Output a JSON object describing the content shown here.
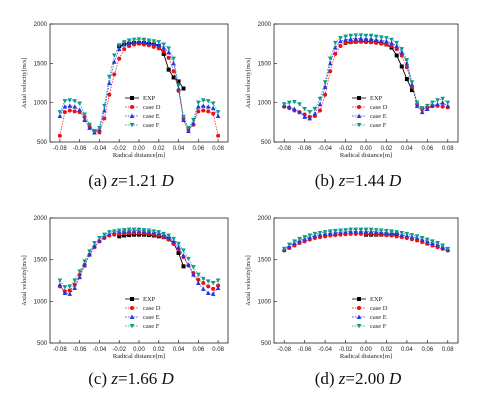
{
  "colors": {
    "EXP": "#000000",
    "case D": "#ee1111",
    "case E": "#2233ee",
    "case F": "#119988"
  },
  "markers": {
    "EXP": "square",
    "case D": "circle",
    "case E": "triangle-up",
    "case F": "triangle-down"
  },
  "chart_data": [
    {
      "type": "line",
      "caption": {
        "prefix": "(a) ",
        "var": "z",
        "value": "=1.21 ",
        "unit": "D"
      },
      "xlabel": "Radical distance[m]",
      "ylabel": "Axial velocity[m/s]",
      "xlim": [
        -0.09,
        0.09
      ],
      "ylim": [
        500,
        2000
      ],
      "xticks": [
        "-0.08",
        "-0.06",
        "-0.04",
        "-0.02",
        "0.00",
        "0.02",
        "0.04",
        "0.06",
        "0.08"
      ],
      "yticks": [
        "500",
        "1000",
        "1500",
        "2000"
      ],
      "legend": "lower-center",
      "x": [
        -0.08,
        -0.075,
        -0.07,
        -0.065,
        -0.06,
        -0.055,
        -0.05,
        -0.045,
        -0.04,
        -0.035,
        -0.03,
        -0.025,
        -0.02,
        -0.015,
        -0.01,
        -0.005,
        0,
        0.005,
        0.01,
        0.015,
        0.02,
        0.025,
        0.03,
        0.035,
        0.04,
        0.045,
        0.05,
        0.055,
        0.06,
        0.065,
        0.07,
        0.075,
        0.08
      ],
      "series": [
        {
          "name": "EXP",
          "x": [
            -0.02,
            -0.015,
            -0.01,
            -0.005,
            0,
            0.005,
            0.01,
            0.015,
            0.02,
            0.025,
            0.03,
            0.035,
            0.04,
            0.045
          ],
          "values": [
            1720,
            1740,
            1750,
            1760,
            1760,
            1760,
            1750,
            1740,
            1720,
            1620,
            1420,
            1320,
            1270,
            1180
          ]
        },
        {
          "name": "case D",
          "values": [
            580,
            880,
            900,
            890,
            880,
            820,
            700,
            640,
            620,
            800,
            1100,
            1360,
            1560,
            1680,
            1720,
            1740,
            1750,
            1740,
            1730,
            1710,
            1690,
            1650,
            1570,
            1400,
            1150,
            800,
            660,
            720,
            890,
            900,
            890,
            860,
            580
          ]
        },
        {
          "name": "case E",
          "values": [
            830,
            950,
            960,
            950,
            910,
            780,
            680,
            620,
            660,
            900,
            1250,
            1520,
            1680,
            1740,
            1760,
            1770,
            1775,
            1770,
            1760,
            1750,
            1730,
            1700,
            1640,
            1500,
            1180,
            780,
            640,
            740,
            950,
            960,
            950,
            930,
            830
          ]
        },
        {
          "name": "case F",
          "values": [
            880,
            1020,
            1030,
            1020,
            990,
            850,
            720,
            640,
            680,
            960,
            1330,
            1600,
            1730,
            1770,
            1790,
            1800,
            1805,
            1800,
            1790,
            1780,
            1770,
            1740,
            1690,
            1560,
            1220,
            820,
            680,
            780,
            1000,
            1030,
            1020,
            990,
            880
          ]
        }
      ]
    },
    {
      "type": "line",
      "caption": {
        "prefix": "(b) ",
        "var": "z",
        "value": "=1.44 ",
        "unit": "D"
      },
      "xlabel": "Radical distance[m]",
      "ylabel": "Axial velocity[m/s]",
      "xlim": [
        -0.09,
        0.09
      ],
      "ylim": [
        500,
        2000
      ],
      "xticks": [
        "-0.08",
        "-0.06",
        "-0.04",
        "-0.02",
        "0.00",
        "0.02",
        "0.04",
        "0.06",
        "0.08"
      ],
      "yticks": [
        "500",
        "1000",
        "1500",
        "2000"
      ],
      "legend": "lower-center",
      "x": [
        -0.08,
        -0.075,
        -0.07,
        -0.065,
        -0.06,
        -0.055,
        -0.05,
        -0.045,
        -0.04,
        -0.035,
        -0.03,
        -0.025,
        -0.02,
        -0.015,
        -0.01,
        -0.005,
        0,
        0.005,
        0.01,
        0.015,
        0.02,
        0.025,
        0.03,
        0.035,
        0.04,
        0.045,
        0.05,
        0.055,
        0.06,
        0.065,
        0.07,
        0.075,
        0.08
      ],
      "series": [
        {
          "name": "EXP",
          "x": [
            -0.02,
            -0.015,
            -0.01,
            -0.005,
            0,
            0.005,
            0.01,
            0.015,
            0.02,
            0.025,
            0.03,
            0.035,
            0.04,
            0.045
          ],
          "values": [
            1760,
            1770,
            1775,
            1780,
            1780,
            1775,
            1770,
            1760,
            1740,
            1700,
            1600,
            1460,
            1300,
            1160
          ]
        },
        {
          "name": "case D",
          "values": [
            950,
            930,
            900,
            880,
            850,
            820,
            830,
            900,
            1100,
            1400,
            1620,
            1720,
            1760,
            1770,
            1775,
            1775,
            1770,
            1770,
            1760,
            1750,
            1740,
            1720,
            1680,
            1600,
            1450,
            1200,
            980,
            920,
            940,
            960,
            960,
            950,
            940
          ]
        },
        {
          "name": "case E",
          "values": [
            960,
            950,
            920,
            880,
            820,
            800,
            860,
            980,
            1200,
            1500,
            1700,
            1780,
            1800,
            1810,
            1815,
            1815,
            1810,
            1810,
            1800,
            1790,
            1780,
            1760,
            1720,
            1640,
            1500,
            1230,
            960,
            880,
            920,
            960,
            980,
            1000,
            960
          ]
        },
        {
          "name": "case F",
          "values": [
            980,
            1000,
            1010,
            980,
            920,
            880,
            920,
            1050,
            1260,
            1560,
            1760,
            1820,
            1840,
            1850,
            1855,
            1855,
            1850,
            1850,
            1840,
            1830,
            1820,
            1800,
            1760,
            1680,
            1540,
            1260,
            1000,
            930,
            960,
            1000,
            1030,
            1050,
            1000
          ]
        }
      ]
    },
    {
      "type": "line",
      "caption": {
        "prefix": "(c) ",
        "var": "z",
        "value": "=1.66 ",
        "unit": "D"
      },
      "xlabel": "Radical distance[m]",
      "ylabel": "Axial velocity[m/s]",
      "xlim": [
        -0.09,
        0.09
      ],
      "ylim": [
        500,
        2000
      ],
      "xticks": [
        "-0.08",
        "-0.06",
        "-0.04",
        "-0.02",
        "0.00",
        "0.02",
        "0.04",
        "0.06",
        "0.08"
      ],
      "yticks": [
        "500",
        "1000",
        "1500",
        "2000"
      ],
      "legend": "lower-center",
      "x": [
        -0.08,
        -0.075,
        -0.07,
        -0.065,
        -0.06,
        -0.055,
        -0.05,
        -0.045,
        -0.04,
        -0.035,
        -0.03,
        -0.025,
        -0.02,
        -0.015,
        -0.01,
        -0.005,
        0,
        0.005,
        0.01,
        0.015,
        0.02,
        0.025,
        0.03,
        0.035,
        0.04,
        0.045,
        0.05,
        0.055,
        0.06,
        0.065,
        0.07,
        0.075,
        0.08
      ],
      "series": [
        {
          "name": "EXP",
          "x": [
            -0.02,
            -0.015,
            -0.01,
            -0.005,
            0,
            0.005,
            0.01,
            0.015,
            0.02,
            0.025,
            0.03,
            0.035,
            0.04,
            0.045
          ],
          "values": [
            1780,
            1790,
            1795,
            1800,
            1800,
            1800,
            1795,
            1790,
            1780,
            1770,
            1750,
            1700,
            1580,
            1420
          ]
        },
        {
          "name": "case D",
          "values": [
            1180,
            1120,
            1130,
            1200,
            1320,
            1440,
            1560,
            1650,
            1720,
            1760,
            1790,
            1800,
            1810,
            1815,
            1820,
            1820,
            1820,
            1815,
            1810,
            1800,
            1790,
            1770,
            1740,
            1690,
            1620,
            1530,
            1430,
            1340,
            1260,
            1220,
            1180,
            1150,
            1190
          ]
        },
        {
          "name": "case E",
          "values": [
            1200,
            1100,
            1090,
            1160,
            1290,
            1430,
            1560,
            1660,
            1730,
            1780,
            1810,
            1830,
            1840,
            1845,
            1850,
            1850,
            1850,
            1845,
            1840,
            1830,
            1820,
            1800,
            1770,
            1720,
            1650,
            1550,
            1440,
            1320,
            1220,
            1150,
            1100,
            1090,
            1160
          ]
        },
        {
          "name": "case F",
          "values": [
            1250,
            1170,
            1180,
            1250,
            1360,
            1480,
            1600,
            1700,
            1760,
            1800,
            1830,
            1840,
            1850,
            1855,
            1860,
            1860,
            1860,
            1855,
            1850,
            1840,
            1830,
            1810,
            1790,
            1750,
            1690,
            1610,
            1510,
            1410,
            1320,
            1270,
            1240,
            1220,
            1250
          ]
        }
      ]
    },
    {
      "type": "line",
      "caption": {
        "prefix": "(d) ",
        "var": "z",
        "value": "=2.00 ",
        "unit": "D"
      },
      "xlabel": "Radical distance[m]",
      "ylabel": "Axial velocity[m/s]",
      "xlim": [
        -0.09,
        0.09
      ],
      "ylim": [
        500,
        2000
      ],
      "xticks": [
        "-0.08",
        "-0.06",
        "-0.04",
        "-0.02",
        "0.00",
        "0.02",
        "0.04",
        "0.06",
        "0.08"
      ],
      "yticks": [
        "500",
        "1000",
        "1500",
        "2000"
      ],
      "legend": "lower-center",
      "x": [
        -0.08,
        -0.075,
        -0.07,
        -0.065,
        -0.06,
        -0.055,
        -0.05,
        -0.045,
        -0.04,
        -0.035,
        -0.03,
        -0.025,
        -0.02,
        -0.015,
        -0.01,
        -0.005,
        0,
        0.005,
        0.01,
        0.015,
        0.02,
        0.025,
        0.03,
        0.035,
        0.04,
        0.045,
        0.05,
        0.055,
        0.06,
        0.065,
        0.07,
        0.075,
        0.08
      ],
      "series": [
        {
          "name": "EXP",
          "x": [
            0,
            0.005,
            0.01,
            0.015,
            0.02,
            0.025,
            0.03
          ],
          "values": [
            1800,
            1800,
            1800,
            1800,
            1800,
            1800,
            1800
          ]
        },
        {
          "name": "case D",
          "values": [
            1610,
            1640,
            1670,
            1700,
            1720,
            1740,
            1760,
            1770,
            1780,
            1790,
            1795,
            1800,
            1805,
            1810,
            1810,
            1810,
            1810,
            1810,
            1805,
            1800,
            1795,
            1790,
            1780,
            1770,
            1760,
            1745,
            1730,
            1710,
            1690,
            1670,
            1650,
            1630,
            1610
          ]
        },
        {
          "name": "case E",
          "values": [
            1620,
            1660,
            1700,
            1730,
            1750,
            1770,
            1790,
            1800,
            1810,
            1820,
            1825,
            1830,
            1835,
            1840,
            1840,
            1840,
            1840,
            1840,
            1835,
            1830,
            1825,
            1820,
            1810,
            1800,
            1790,
            1775,
            1760,
            1740,
            1720,
            1700,
            1680,
            1650,
            1620
          ]
        },
        {
          "name": "case F",
          "values": [
            1630,
            1680,
            1720,
            1750,
            1770,
            1790,
            1810,
            1820,
            1830,
            1840,
            1845,
            1850,
            1855,
            1860,
            1860,
            1860,
            1860,
            1860,
            1855,
            1850,
            1845,
            1840,
            1830,
            1820,
            1810,
            1795,
            1780,
            1760,
            1740,
            1720,
            1700,
            1670,
            1630
          ]
        }
      ]
    }
  ]
}
